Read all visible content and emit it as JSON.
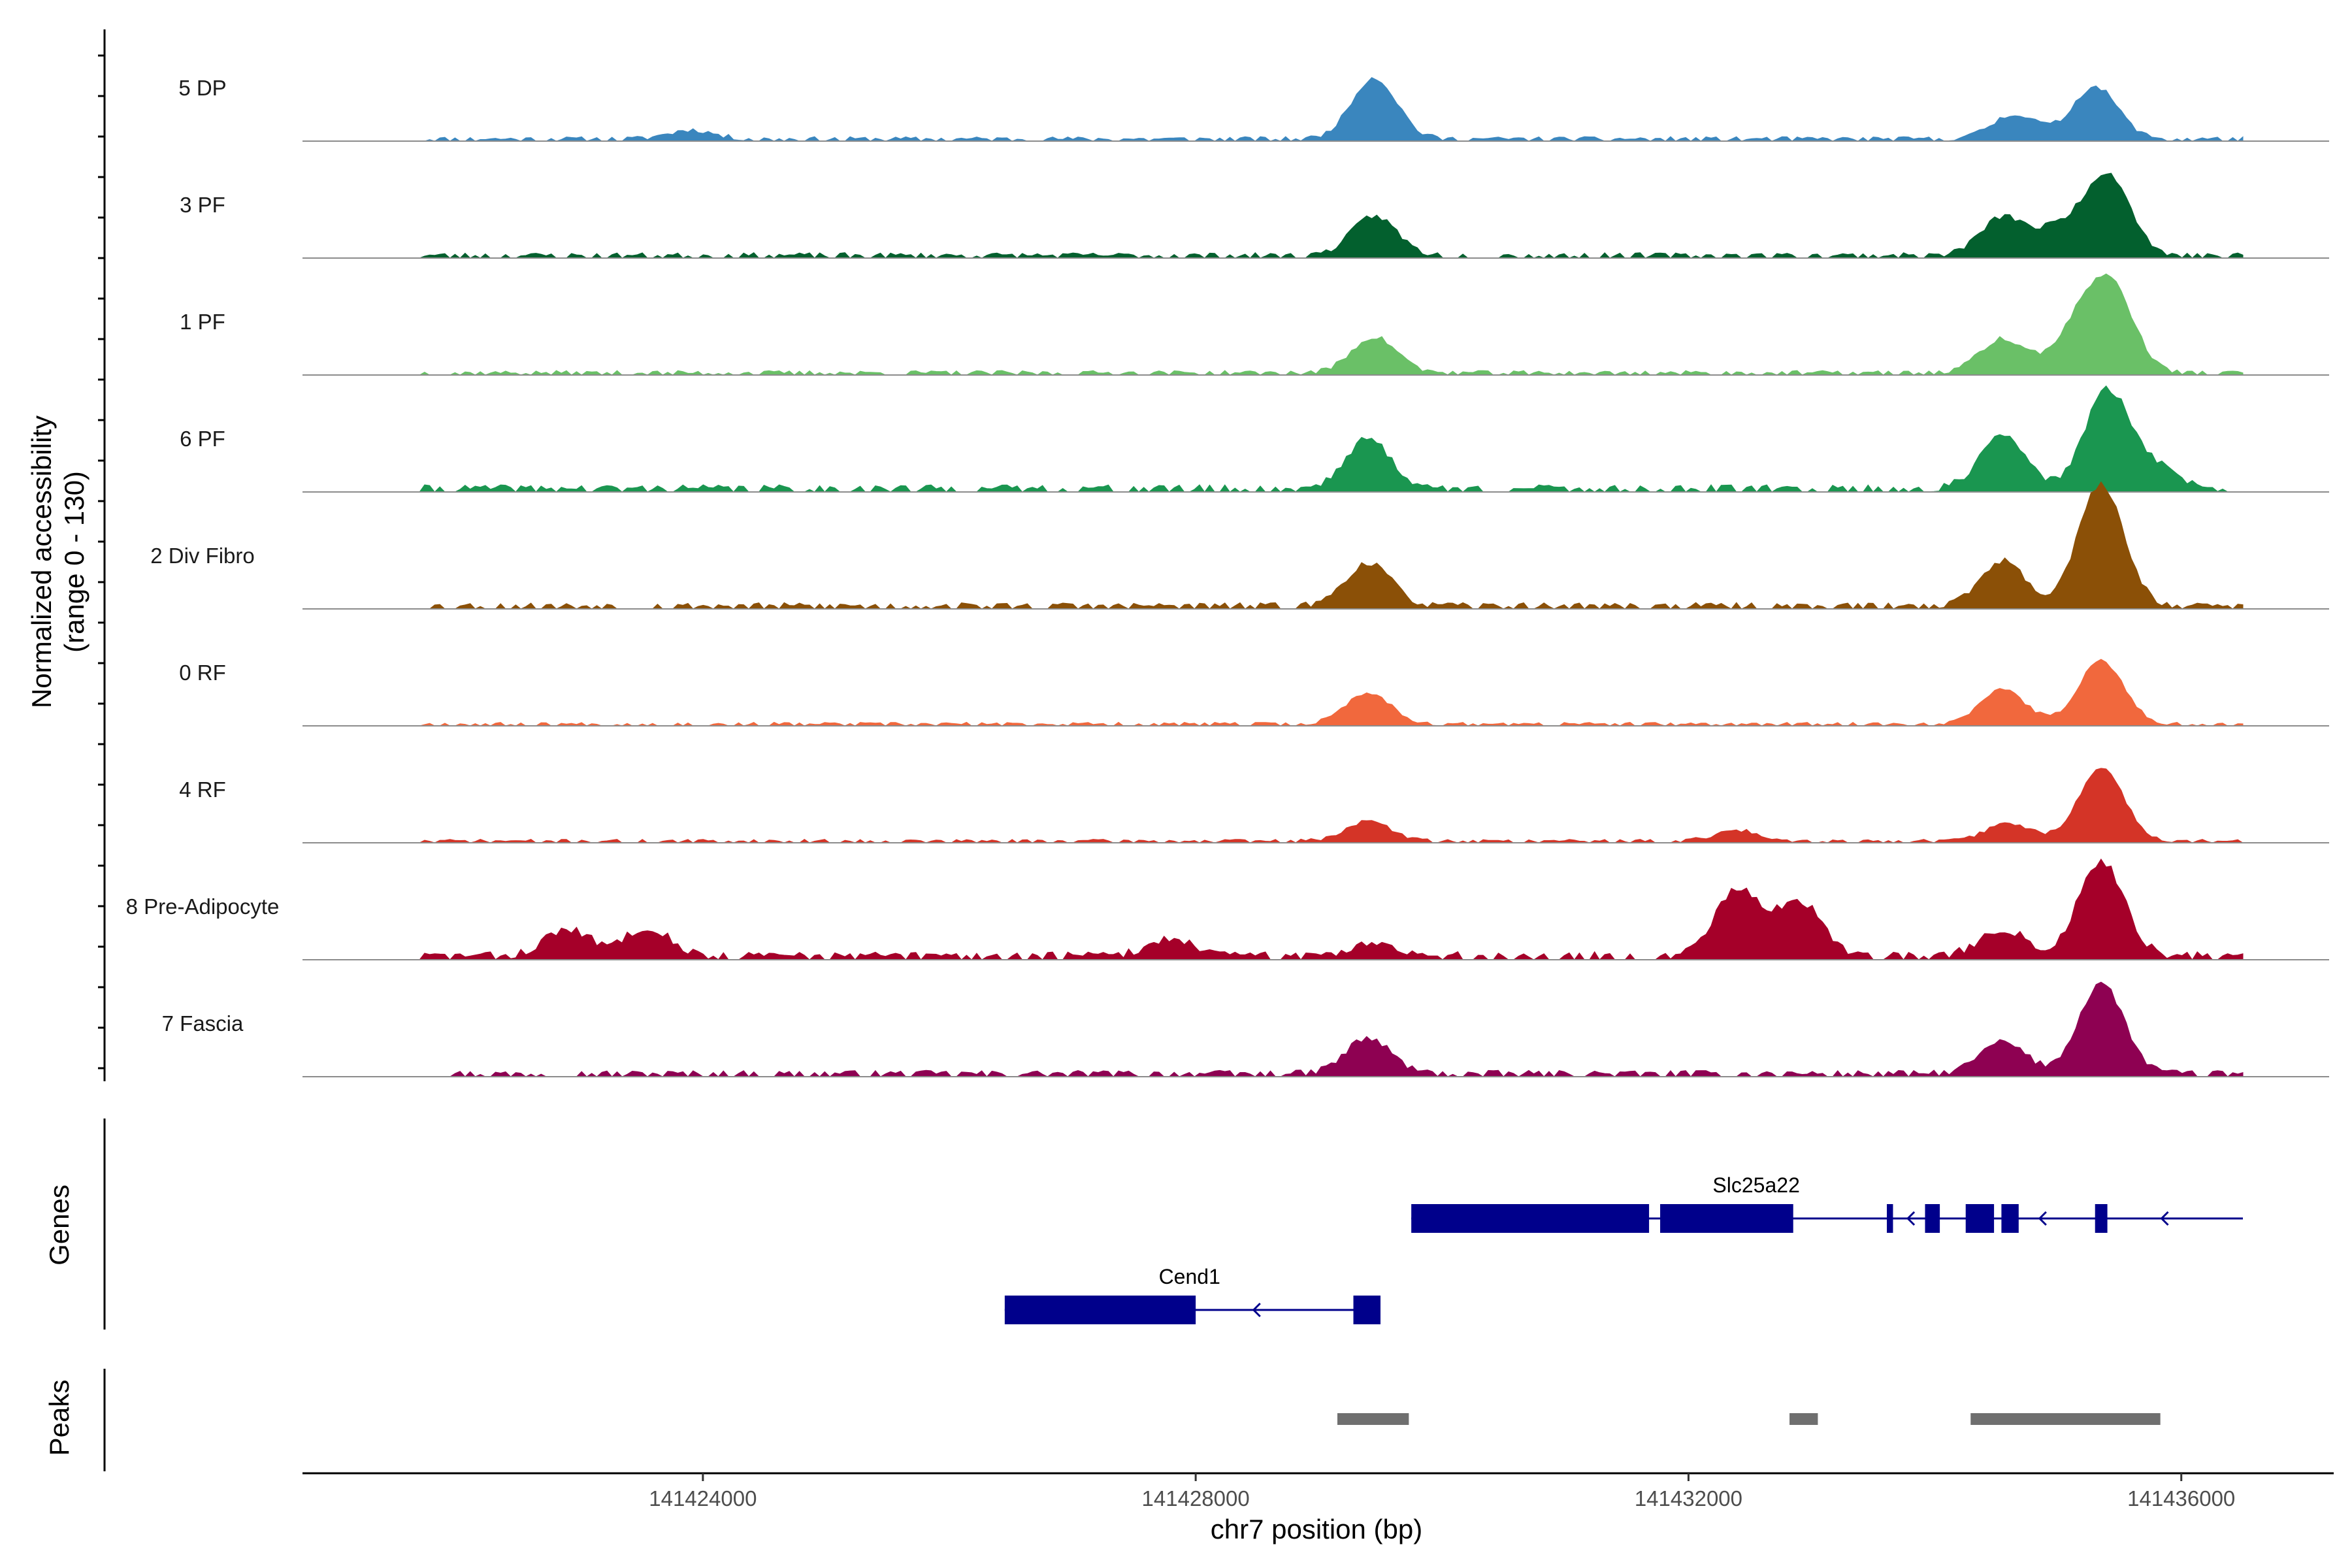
{
  "chart_data": {
    "type": "area",
    "title": "",
    "ylabel_line1": "Normalized accessibility",
    "ylabel_line2": "(range 0 - 130)",
    "xlabel": "chr7 position (bp)",
    "y_range": [
      0,
      130
    ],
    "x_range": [
      141420750,
      141437200
    ],
    "x_ticks": [
      141424000,
      141428000,
      141432000,
      141436000
    ],
    "x_tick_labels": [
      "141424000",
      "141428000",
      "141432000",
      "141436000"
    ],
    "tracks": [
      {
        "name": "5 DP",
        "color": "#3a86be",
        "peaks": [
          [
            141423900,
            10
          ],
          [
            141429450,
            68
          ],
          [
            141434650,
            28
          ],
          [
            141435300,
            58
          ]
        ],
        "noise": 5,
        "seed": 11
      },
      {
        "name": "3 PF",
        "color": "#03602e",
        "peaks": [
          [
            141429450,
            44
          ],
          [
            141434550,
            42
          ],
          [
            141435000,
            28
          ],
          [
            141435400,
            90
          ]
        ],
        "noise": 6,
        "seed": 23
      },
      {
        "name": "1 PF",
        "color": "#6ac067",
        "peaks": [
          [
            141429450,
            40
          ],
          [
            141434550,
            38
          ],
          [
            141435150,
            45
          ],
          [
            141435430,
            92
          ]
        ],
        "noise": 5,
        "seed": 37
      },
      {
        "name": "6 PF",
        "color": "#1a9650",
        "peaks": [
          [
            141429400,
            55
          ],
          [
            141434550,
            58
          ],
          [
            141435400,
            108
          ],
          [
            141435800,
            22
          ]
        ],
        "noise": 8,
        "seed": 41
      },
      {
        "name": "2 Div Fibro",
        "color": "#8b5007",
        "peaks": [
          [
            141429400,
            48
          ],
          [
            141434550,
            50
          ],
          [
            141435350,
            135
          ]
        ],
        "noise": 7,
        "seed": 53
      },
      {
        "name": "0 RF",
        "color": "#f1683d",
        "peaks": [
          [
            141429400,
            35
          ],
          [
            141434550,
            38
          ],
          [
            141435350,
            70
          ]
        ],
        "noise": 4,
        "seed": 67
      },
      {
        "name": "4 RF",
        "color": "#d43427",
        "peaks": [
          [
            141429400,
            22
          ],
          [
            141432400,
            12
          ],
          [
            141434600,
            20
          ],
          [
            141435350,
            80
          ]
        ],
        "noise": 4,
        "seed": 71
      },
      {
        "name": "8 Pre-Adipocyte",
        "color": "#a50029",
        "peaks": [
          [
            141422900,
            30
          ],
          [
            141423550,
            32
          ],
          [
            141427800,
            20
          ],
          [
            141429450,
            16
          ],
          [
            141432400,
            75
          ],
          [
            141432900,
            60
          ],
          [
            141434550,
            30
          ],
          [
            141435350,
            105
          ]
        ],
        "noise": 9,
        "seed": 83
      },
      {
        "name": "7 Fascia",
        "color": "#8e0152",
        "peaks": [
          [
            141429400,
            40
          ],
          [
            141434550,
            35
          ],
          [
            141435350,
            100
          ]
        ],
        "noise": 7,
        "seed": 97
      }
    ],
    "genes_label": "Genes",
    "genes": [
      {
        "name": "Slc25a22",
        "start": 141429750,
        "end": 141436500,
        "row": 1,
        "exons": [
          [
            141429750,
            141431680
          ],
          [
            141431770,
            141432850
          ],
          [
            141433610,
            141433660
          ],
          [
            141433920,
            141434040
          ],
          [
            141434250,
            141434480
          ],
          [
            141434540,
            141434680
          ],
          [
            141435300,
            141435400
          ]
        ],
        "arrows": [
          141433780,
          141434850,
          141435840
        ]
      },
      {
        "name": "Cend1",
        "start": 141426450,
        "end": 141429500,
        "row": 2,
        "exons": [
          [
            141426450,
            141428000
          ],
          [
            141429280,
            141429500
          ]
        ],
        "arrows": [
          141428470
        ]
      }
    ],
    "peaks_label": "Peaks",
    "peak_regions": [
      [
        141429150,
        141429730
      ],
      [
        141432820,
        141433050
      ],
      [
        141434290,
        141435830
      ]
    ]
  }
}
